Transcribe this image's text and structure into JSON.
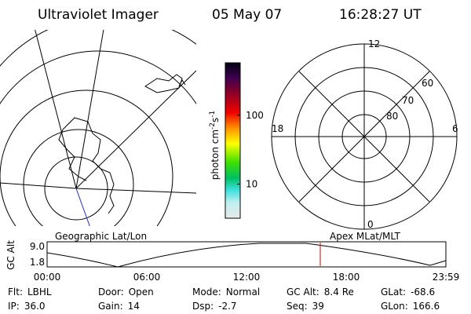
{
  "header": {
    "title": "Ultraviolet Imager",
    "date": "05 May 07",
    "time": "16:28:27 UT"
  },
  "left_panel": {
    "label": "Geographic Lat/Lon"
  },
  "colorbar": {
    "label": "photon cm",
    "exp1": "-2",
    "unit2": "s",
    "exp2": "-1",
    "scale": "log",
    "lim": [
      3.2,
      577
    ],
    "ticks": [
      10,
      100
    ]
  },
  "polar": {
    "label": "Apex MLat/MLT",
    "mlt_labels": {
      "top": "12",
      "left": "18",
      "right": "6",
      "bottom": "0"
    },
    "lat_labels": [
      "60",
      "70",
      "80"
    ]
  },
  "altitude": {
    "axis_label": "GC Alt",
    "yticks": [
      "9.0",
      "1.8"
    ],
    "xticks": [
      "00:00",
      "06:00",
      "12:00",
      "18:00",
      "23:59"
    ]
  },
  "status": [
    {
      "label": "Flt:",
      "value": "LBHL"
    },
    {
      "label": "IP:",
      "value": "36.0"
    },
    {
      "label": "Door:",
      "value": "Open"
    },
    {
      "label": "Gain:",
      "value": "14"
    },
    {
      "label": "Mode:",
      "value": "Normal"
    },
    {
      "label": "Dsp:",
      "value": "-2.7"
    },
    {
      "label": "GC Alt:",
      "value": "8.4 Re"
    },
    {
      "label": "Seq:",
      "value": "39"
    },
    {
      "label": "GLat:",
      "value": "-68.6"
    },
    {
      "label": "GLon:",
      "value": "166.6"
    }
  ]
}
